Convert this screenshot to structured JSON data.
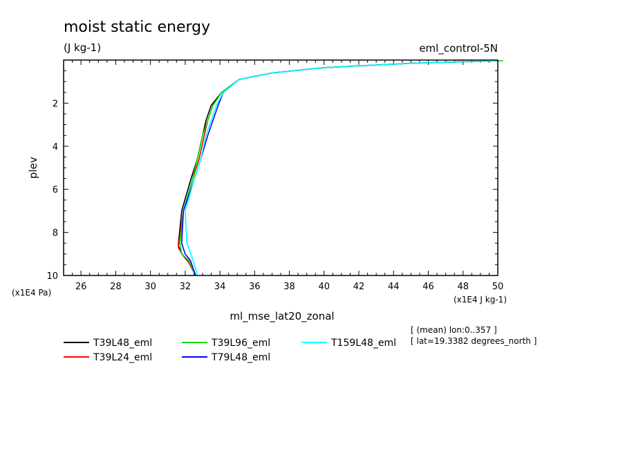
{
  "chart_data": {
    "type": "line",
    "title": "moist static energy",
    "units": "(J kg-1)",
    "experiment": "eml_control-5N",
    "xlabel": "ml_mse_lat20_zonal",
    "ylabel": "plev",
    "x_exponent": "(x1E4 J kg-1)",
    "y_exponent": "(x1E4 Pa)",
    "xlim": [
      25,
      50
    ],
    "ylim": [
      10,
      0
    ],
    "y_inverted": true,
    "xticks": [
      26,
      28,
      30,
      32,
      34,
      36,
      38,
      40,
      42,
      44,
      46,
      48,
      50
    ],
    "yticks": [
      2,
      4,
      6,
      8,
      10
    ],
    "grid": false,
    "legend_position": "bottom-left",
    "info_lines": [
      "[ (mean) lon:0..357 ]",
      "[ lat=19.3382 degrees_north ]"
    ],
    "series": [
      {
        "name": "T39L48_eml",
        "color": "#000000",
        "points": [
          [
            32.6,
            10.0
          ],
          [
            32.2,
            9.3
          ],
          [
            31.8,
            9.0
          ],
          [
            31.6,
            8.6
          ],
          [
            31.8,
            7.0
          ],
          [
            32.3,
            5.6
          ],
          [
            32.7,
            4.6
          ],
          [
            33.0,
            3.5
          ],
          [
            33.2,
            2.8
          ],
          [
            33.5,
            2.1
          ],
          [
            34.1,
            1.5
          ],
          [
            35.1,
            0.9
          ],
          [
            37.0,
            0.6
          ],
          [
            40.0,
            0.35
          ],
          [
            45.0,
            0.15
          ],
          [
            50.0,
            0.03
          ]
        ]
      },
      {
        "name": "T39L24_eml",
        "color": "#ff0000",
        "points": [
          [
            32.6,
            10.0
          ],
          [
            32.2,
            9.4
          ],
          [
            31.9,
            9.1
          ],
          [
            31.6,
            8.7
          ],
          [
            31.9,
            7.0
          ],
          [
            32.4,
            5.6
          ],
          [
            32.8,
            4.6
          ],
          [
            33.1,
            3.5
          ],
          [
            33.3,
            2.8
          ],
          [
            33.6,
            2.1
          ],
          [
            34.1,
            1.5
          ],
          [
            35.1,
            0.9
          ],
          [
            37.0,
            0.6
          ],
          [
            40.0,
            0.35
          ],
          [
            45.0,
            0.15
          ],
          [
            50.0,
            0.03
          ]
        ]
      },
      {
        "name": "T39L96_eml",
        "color": "#00dd00",
        "points": [
          [
            32.6,
            10.0
          ],
          [
            32.2,
            9.3
          ],
          [
            31.8,
            9.0
          ],
          [
            31.7,
            8.5
          ],
          [
            31.9,
            7.0
          ],
          [
            32.4,
            5.6
          ],
          [
            32.7,
            4.6
          ],
          [
            33.0,
            3.5
          ],
          [
            33.3,
            2.8
          ],
          [
            33.6,
            2.1
          ],
          [
            34.1,
            1.5
          ],
          [
            35.1,
            0.9
          ],
          [
            37.0,
            0.6
          ],
          [
            40.0,
            0.35
          ],
          [
            45.0,
            0.15
          ],
          [
            50.3,
            0.03
          ]
        ]
      },
      {
        "name": "T79L48_eml",
        "color": "#0000ff",
        "points": [
          [
            32.6,
            10.0
          ],
          [
            32.3,
            9.3
          ],
          [
            32.0,
            9.0
          ],
          [
            31.8,
            8.5
          ],
          [
            31.9,
            7.0
          ],
          [
            32.5,
            5.6
          ],
          [
            32.9,
            4.6
          ],
          [
            33.3,
            3.5
          ],
          [
            33.6,
            2.8
          ],
          [
            33.9,
            2.1
          ],
          [
            34.2,
            1.5
          ],
          [
            35.1,
            0.9
          ],
          [
            37.0,
            0.6
          ],
          [
            40.0,
            0.35
          ],
          [
            45.0,
            0.15
          ],
          [
            50.0,
            0.03
          ]
        ]
      },
      {
        "name": "T159L48_eml",
        "color": "#00ffff",
        "points": [
          [
            32.7,
            10.0
          ],
          [
            32.5,
            9.4
          ],
          [
            32.1,
            8.5
          ],
          [
            32.0,
            7.0
          ],
          [
            32.5,
            5.6
          ],
          [
            32.9,
            4.6
          ],
          [
            33.2,
            3.5
          ],
          [
            33.5,
            2.8
          ],
          [
            33.8,
            2.1
          ],
          [
            34.2,
            1.5
          ],
          [
            35.1,
            0.9
          ],
          [
            37.0,
            0.6
          ],
          [
            40.0,
            0.35
          ],
          [
            45.0,
            0.15
          ],
          [
            50.0,
            0.03
          ]
        ]
      }
    ]
  }
}
